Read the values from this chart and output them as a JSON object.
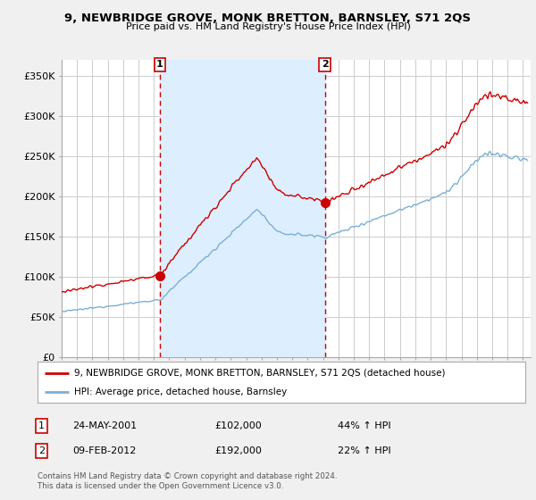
{
  "title": "9, NEWBRIDGE GROVE, MONK BRETTON, BARNSLEY, S71 2QS",
  "subtitle": "Price paid vs. HM Land Registry's House Price Index (HPI)",
  "ylim": [
    0,
    370000
  ],
  "yticks": [
    0,
    50000,
    100000,
    150000,
    200000,
    250000,
    300000,
    350000
  ],
  "ytick_labels": [
    "£0",
    "£50K",
    "£100K",
    "£150K",
    "£200K",
    "£250K",
    "£300K",
    "£350K"
  ],
  "background_color": "#f0f0f0",
  "plot_background": "#ffffff",
  "grid_color": "#cccccc",
  "sale1_date_num": 2001.39,
  "sale1_price": 102000,
  "sale2_date_num": 2012.11,
  "sale2_price": 192000,
  "sale1_date_str": "24-MAY-2001",
  "sale1_price_str": "£102,000",
  "sale1_pct": "44% ↑ HPI",
  "sale2_date_str": "09-FEB-2012",
  "sale2_price_str": "£192,000",
  "sale2_pct": "22% ↑ HPI",
  "line1_color": "#cc0000",
  "line2_color": "#7ab0d4",
  "shade_color": "#ddeeff",
  "vline_color": "#cc0000",
  "legend1_label": "9, NEWBRIDGE GROVE, MONK BRETTON, BARNSLEY, S71 2QS (detached house)",
  "legend2_label": "HPI: Average price, detached house, Barnsley",
  "footnote": "Contains HM Land Registry data © Crown copyright and database right 2024.\nThis data is licensed under the Open Government Licence v3.0.",
  "xmin": 1995.0,
  "xmax": 2025.5
}
